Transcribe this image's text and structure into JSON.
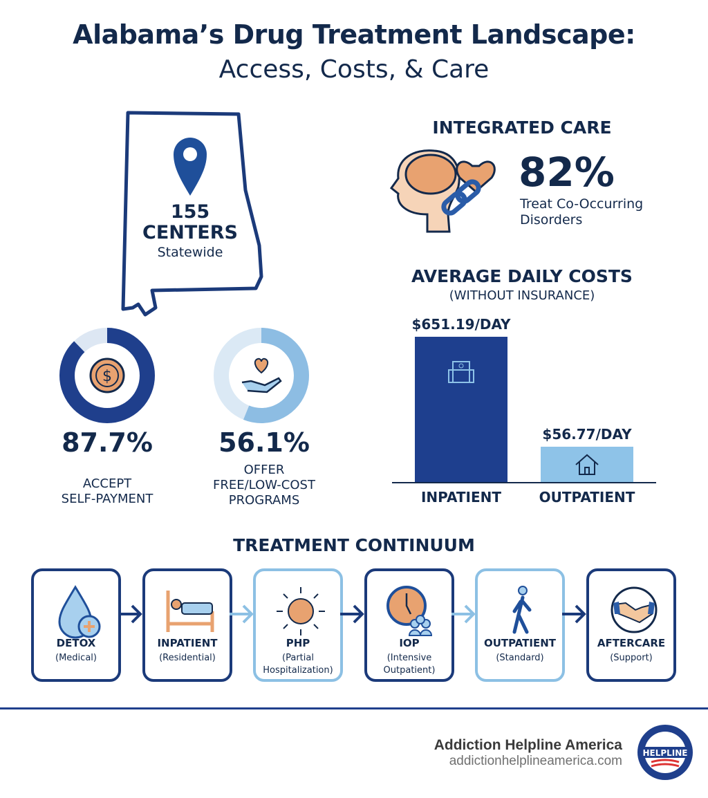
{
  "header": {
    "title": "Alabama’s Drug Treatment Landscape:",
    "subtitle": "Access, Costs, & Care"
  },
  "map": {
    "count": "155",
    "unit": "CENTERS",
    "scope": "Statewide",
    "icon": "map-pin-icon"
  },
  "stats": [
    {
      "value": "87.7%",
      "percent": 87.7,
      "label1": "ACCEPT",
      "label2": "SELF-PAYMENT",
      "icon": "dollar-coin-icon",
      "color": "#1f3f8c"
    },
    {
      "value": "56.1%",
      "percent": 56.1,
      "label1": "OFFER",
      "label2": "FREE/LOW-COST",
      "label3": "PROGRAMS",
      "icon": "heart-hand-icon",
      "color": "#8dbde3"
    }
  ],
  "integrated": {
    "heading": "INTEGRATED CARE",
    "value": "82%",
    "label1": "Treat Co-Occurring",
    "label2": "Disorders"
  },
  "costs": {
    "heading": "AVERAGE DAILY COSTS",
    "subheading": "(WITHOUT INSURANCE)",
    "chart_data": {
      "type": "bar",
      "categories": [
        "INPATIENT",
        "OUTPATIENT"
      ],
      "values": [
        651.19,
        56.77
      ],
      "data_labels": [
        "$651.19/DAY",
        "$56.77/DAY"
      ],
      "colors": [
        "#1e3f8e",
        "#8ec3e8"
      ],
      "unit": "USD per day"
    }
  },
  "continuum": {
    "heading": "TREATMENT CONTINUUM",
    "steps": [
      {
        "title": "DETOX",
        "sub1": "(Medical)",
        "sub2": "",
        "icon": "drop-cross-icon",
        "style": "dark"
      },
      {
        "title": "INPATIENT",
        "sub1": "(Residential)",
        "sub2": "",
        "icon": "bed-icon",
        "style": "dark"
      },
      {
        "title": "PHP",
        "sub1": "(Partial",
        "sub2": "Hospitalization)",
        "icon": "sun-icon",
        "style": "light"
      },
      {
        "title": "IOP",
        "sub1": "(Intensive",
        "sub2": "Outpatient)",
        "icon": "clock-group-icon",
        "style": "dark"
      },
      {
        "title": "OUTPATIENT",
        "sub1": "(Standard)",
        "sub2": "",
        "icon": "walking-person-icon",
        "style": "light"
      },
      {
        "title": "AFTERCARE",
        "sub1": "(Support)",
        "sub2": "",
        "icon": "handshake-icon",
        "style": "dark"
      }
    ]
  },
  "footer": {
    "brand": "Addiction Helpline America",
    "url": "addictionhelplineamerica.com",
    "logo_text": "ADDICTION HELPLINE AMERICA"
  }
}
